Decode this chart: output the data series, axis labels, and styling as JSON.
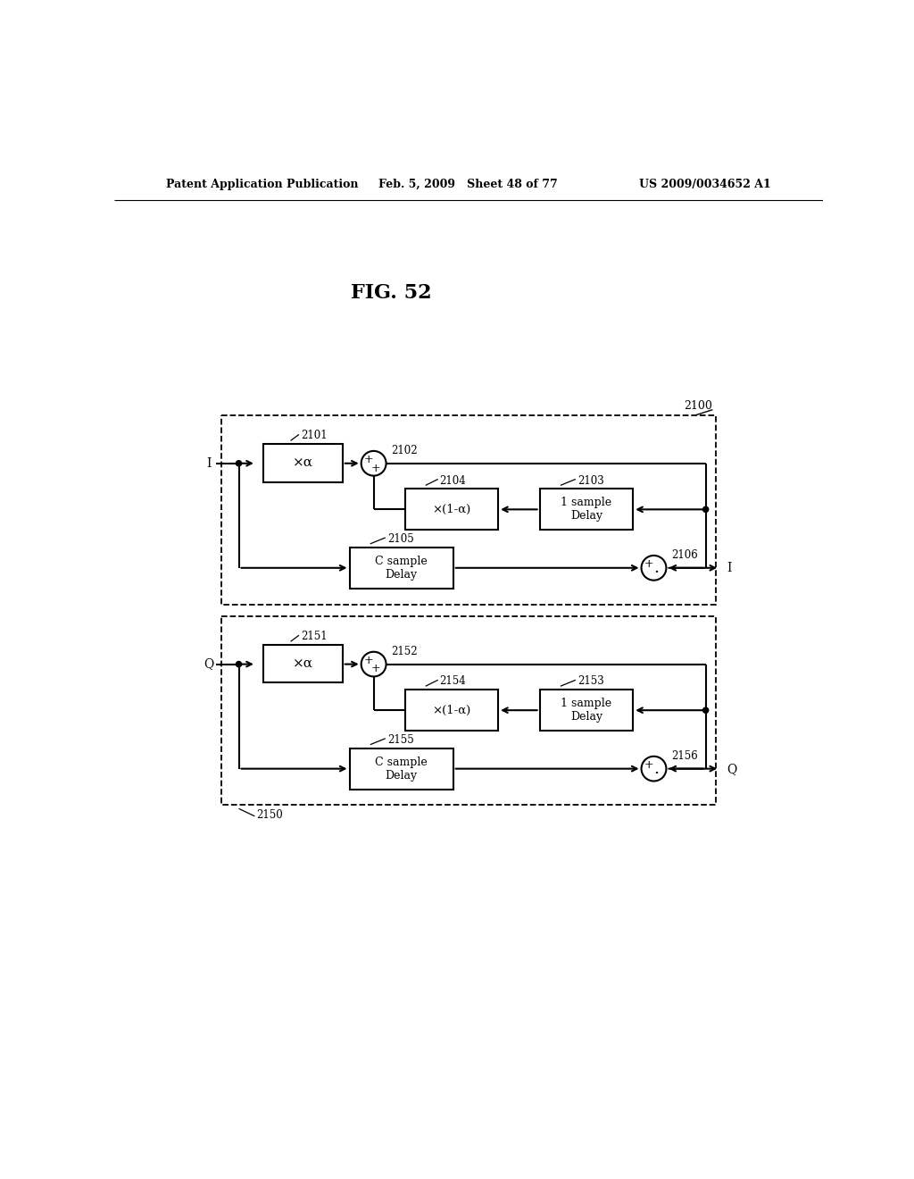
{
  "title": "FIG. 52",
  "header_left": "Patent Application Publication",
  "header_mid": "Feb. 5, 2009   Sheet 48 of 77",
  "header_right": "US 2009/0034652 A1",
  "bg_color": "#ffffff",
  "line_color": "#000000",
  "top_block": {
    "outer_label": "2100",
    "input_label": "I",
    "output_label": "I",
    "box1_label": "×α",
    "box1_num": "2101",
    "adder1_num": "2102",
    "box2_label": "×(1-α)",
    "box2_num": "2104",
    "delay1_label": "1 sample\nDelay",
    "delay1_num": "2103",
    "delay2_label": "C sample\nDelay",
    "delay2_num": "2105",
    "adder2_num": "2106"
  },
  "bot_block": {
    "outer_label": "2150",
    "input_label": "Q",
    "output_label": "Q",
    "box1_label": "×α",
    "box1_num": "2151",
    "adder1_num": "2152",
    "box2_label": "×(1-α)",
    "box2_num": "2154",
    "delay1_label": "1 sample\nDelay",
    "delay1_num": "2153",
    "delay2_label": "C sample\nDelay",
    "delay2_num": "2155",
    "adder2_num": "2156"
  }
}
